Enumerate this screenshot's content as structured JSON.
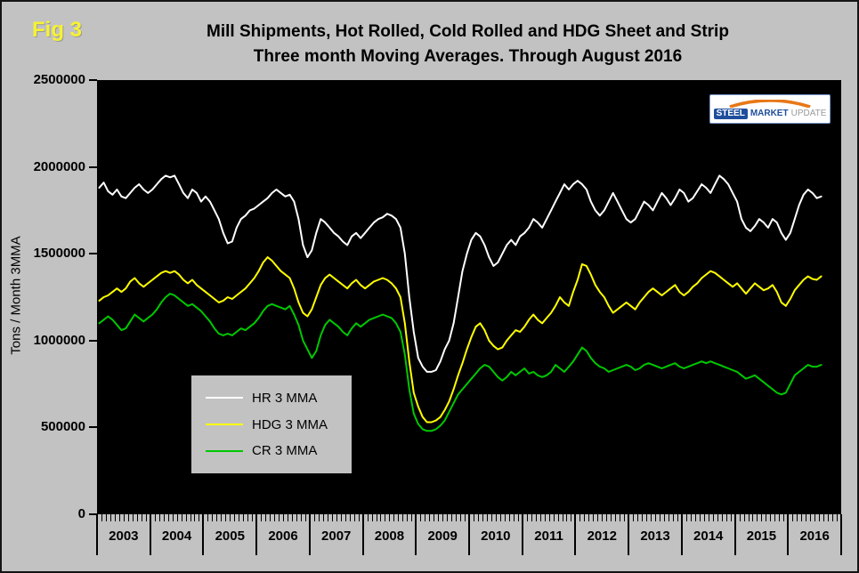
{
  "fig_label": "Fig 3",
  "title": {
    "line1": "Mill Shipments, Hot Rolled, Cold Rolled and HDG Sheet and Strip",
    "line2": "Three month Moving Averages. Through August 2016"
  },
  "y_axis_title": "Tons / Month 3MMA",
  "logo": {
    "steel": "STEEL",
    "market": "MARKET",
    "update": "UPDATE"
  },
  "chart_data": {
    "type": "line",
    "title": "Mill Shipments, Hot Rolled, Cold Rolled and HDG Sheet and Strip. Three month Moving Averages. Through August 2016",
    "ylabel": "Tons / Month 3MMA",
    "ylim": [
      0,
      2500000
    ],
    "yticks": [
      2500000,
      2000000,
      1500000,
      1000000,
      500000,
      0
    ],
    "ytick_labels": [
      "2500000",
      "2000000",
      "1500000",
      "1000000",
      "500000",
      "0"
    ],
    "x_years": [
      "2003",
      "2004",
      "2005",
      "2006",
      "2007",
      "2008",
      "2009",
      "2010",
      "2011",
      "2012",
      "2013",
      "2014",
      "2015",
      "2016"
    ],
    "x_unit": "month",
    "x_start": "2003-01",
    "x_end": "2016-08",
    "grid": false,
    "plot_background": "#000000",
    "legend_position": "lower-left",
    "series": [
      {
        "name": "HR 3 MMA",
        "color": "#ffffff",
        "values": [
          1880000,
          1910000,
          1860000,
          1840000,
          1870000,
          1830000,
          1820000,
          1850000,
          1880000,
          1900000,
          1870000,
          1850000,
          1870000,
          1900000,
          1930000,
          1950000,
          1940000,
          1950000,
          1900000,
          1850000,
          1820000,
          1870000,
          1850000,
          1800000,
          1830000,
          1800000,
          1750000,
          1700000,
          1620000,
          1560000,
          1570000,
          1650000,
          1700000,
          1720000,
          1750000,
          1760000,
          1780000,
          1800000,
          1820000,
          1850000,
          1870000,
          1850000,
          1830000,
          1840000,
          1800000,
          1700000,
          1550000,
          1480000,
          1520000,
          1620000,
          1700000,
          1680000,
          1650000,
          1620000,
          1600000,
          1570000,
          1550000,
          1600000,
          1620000,
          1590000,
          1620000,
          1650000,
          1680000,
          1700000,
          1710000,
          1730000,
          1720000,
          1700000,
          1650000,
          1500000,
          1250000,
          1050000,
          900000,
          850000,
          820000,
          820000,
          830000,
          880000,
          950000,
          1000000,
          1100000,
          1250000,
          1400000,
          1500000,
          1580000,
          1620000,
          1600000,
          1550000,
          1480000,
          1430000,
          1450000,
          1500000,
          1550000,
          1580000,
          1550000,
          1600000,
          1620000,
          1650000,
          1700000,
          1680000,
          1650000,
          1700000,
          1750000,
          1800000,
          1850000,
          1900000,
          1870000,
          1900000,
          1920000,
          1900000,
          1870000,
          1800000,
          1750000,
          1720000,
          1750000,
          1800000,
          1850000,
          1800000,
          1750000,
          1700000,
          1680000,
          1700000,
          1750000,
          1800000,
          1780000,
          1750000,
          1800000,
          1850000,
          1820000,
          1780000,
          1820000,
          1870000,
          1850000,
          1800000,
          1820000,
          1860000,
          1900000,
          1880000,
          1850000,
          1900000,
          1950000,
          1930000,
          1900000,
          1850000,
          1800000,
          1700000,
          1650000,
          1630000,
          1660000,
          1700000,
          1680000,
          1650000,
          1700000,
          1680000,
          1620000,
          1580000,
          1620000,
          1700000,
          1780000,
          1840000,
          1870000,
          1850000,
          1820000,
          1830000
        ]
      },
      {
        "name": "HDG 3 MMA",
        "color": "#ffff00",
        "values": [
          1230000,
          1250000,
          1260000,
          1280000,
          1300000,
          1280000,
          1300000,
          1340000,
          1360000,
          1330000,
          1310000,
          1330000,
          1350000,
          1370000,
          1390000,
          1400000,
          1390000,
          1400000,
          1380000,
          1350000,
          1330000,
          1350000,
          1320000,
          1300000,
          1280000,
          1260000,
          1240000,
          1220000,
          1230000,
          1250000,
          1240000,
          1260000,
          1280000,
          1300000,
          1330000,
          1360000,
          1400000,
          1450000,
          1480000,
          1460000,
          1430000,
          1400000,
          1380000,
          1360000,
          1300000,
          1220000,
          1160000,
          1140000,
          1180000,
          1250000,
          1320000,
          1360000,
          1380000,
          1360000,
          1340000,
          1320000,
          1300000,
          1330000,
          1350000,
          1320000,
          1300000,
          1320000,
          1340000,
          1350000,
          1360000,
          1350000,
          1330000,
          1300000,
          1250000,
          1100000,
          880000,
          700000,
          620000,
          560000,
          530000,
          530000,
          540000,
          560000,
          600000,
          650000,
          720000,
          800000,
          870000,
          950000,
          1020000,
          1080000,
          1100000,
          1060000,
          1000000,
          970000,
          950000,
          960000,
          1000000,
          1030000,
          1060000,
          1050000,
          1080000,
          1120000,
          1150000,
          1120000,
          1100000,
          1130000,
          1160000,
          1200000,
          1250000,
          1220000,
          1200000,
          1280000,
          1350000,
          1440000,
          1430000,
          1380000,
          1320000,
          1280000,
          1250000,
          1200000,
          1160000,
          1180000,
          1200000,
          1220000,
          1200000,
          1180000,
          1220000,
          1250000,
          1280000,
          1300000,
          1280000,
          1260000,
          1280000,
          1300000,
          1320000,
          1280000,
          1260000,
          1280000,
          1310000,
          1330000,
          1360000,
          1380000,
          1400000,
          1390000,
          1370000,
          1350000,
          1330000,
          1310000,
          1330000,
          1300000,
          1270000,
          1300000,
          1330000,
          1310000,
          1290000,
          1300000,
          1320000,
          1280000,
          1220000,
          1200000,
          1240000,
          1290000,
          1320000,
          1350000,
          1370000,
          1355000,
          1350000,
          1370000
        ]
      },
      {
        "name": "CR 3 MMA",
        "color": "#00c800",
        "values": [
          1100000,
          1120000,
          1140000,
          1120000,
          1090000,
          1060000,
          1070000,
          1110000,
          1150000,
          1130000,
          1110000,
          1130000,
          1150000,
          1180000,
          1220000,
          1250000,
          1270000,
          1260000,
          1240000,
          1220000,
          1200000,
          1210000,
          1190000,
          1170000,
          1140000,
          1110000,
          1070000,
          1040000,
          1030000,
          1040000,
          1030000,
          1050000,
          1070000,
          1060000,
          1080000,
          1100000,
          1130000,
          1170000,
          1200000,
          1210000,
          1200000,
          1190000,
          1180000,
          1200000,
          1150000,
          1090000,
          1000000,
          950000,
          900000,
          940000,
          1030000,
          1090000,
          1120000,
          1100000,
          1080000,
          1050000,
          1030000,
          1070000,
          1100000,
          1080000,
          1100000,
          1120000,
          1130000,
          1140000,
          1150000,
          1140000,
          1130000,
          1100000,
          1050000,
          920000,
          720000,
          580000,
          520000,
          490000,
          480000,
          480000,
          490000,
          510000,
          540000,
          590000,
          640000,
          690000,
          720000,
          750000,
          780000,
          810000,
          840000,
          860000,
          850000,
          820000,
          790000,
          770000,
          790000,
          820000,
          800000,
          820000,
          840000,
          810000,
          820000,
          800000,
          790000,
          800000,
          820000,
          860000,
          840000,
          820000,
          850000,
          880000,
          920000,
          960000,
          940000,
          900000,
          870000,
          850000,
          840000,
          820000,
          830000,
          840000,
          850000,
          860000,
          850000,
          830000,
          840000,
          860000,
          870000,
          860000,
          850000,
          840000,
          850000,
          860000,
          870000,
          850000,
          840000,
          850000,
          860000,
          870000,
          880000,
          870000,
          880000,
          870000,
          860000,
          850000,
          840000,
          830000,
          820000,
          800000,
          780000,
          790000,
          800000,
          780000,
          760000,
          740000,
          720000,
          700000,
          690000,
          700000,
          750000,
          800000,
          820000,
          840000,
          860000,
          850000,
          850000,
          860000
        ]
      }
    ]
  }
}
